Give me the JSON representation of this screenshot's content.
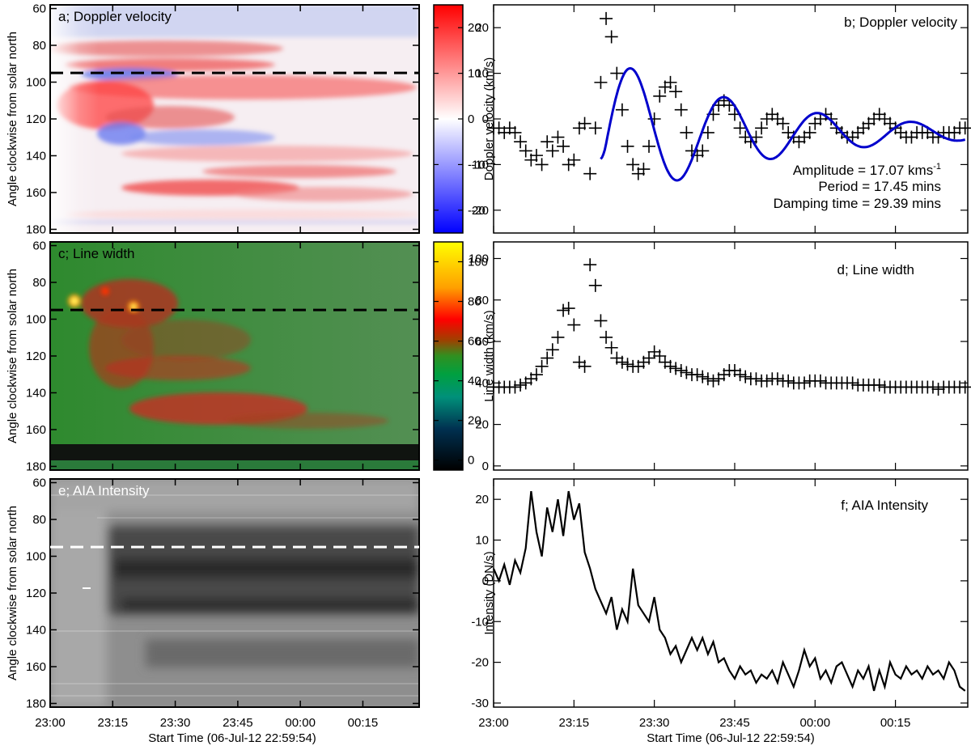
{
  "shared": {
    "left_ylabel": "Angle clockwise from solar north",
    "xlabel": "Start Time (06-Jul-12 22:59:54)",
    "time_ticks": [
      "23:00",
      "23:15",
      "23:30",
      "23:45",
      "00:00",
      "00:15"
    ],
    "time_tick_minutes": [
      0,
      15,
      30,
      45,
      60,
      75
    ],
    "time_range_minutes": [
      0,
      88.5
    ],
    "angle_ticks": [
      "60",
      "80",
      "100",
      "120",
      "140",
      "160",
      "180"
    ],
    "angle_tick_values": [
      60,
      80,
      100,
      120,
      140,
      160,
      180
    ],
    "angle_range": [
      58,
      182
    ],
    "cut_angle": 95
  },
  "chart_data": [
    {
      "id": "a",
      "type": "heatmap",
      "title": "a; Doppler velocity",
      "xlabel": "Start Time (06-Jul-12 22:59:54)",
      "ylabel": "Angle clockwise from solar north",
      "colorbar_label": "Doppler velocity (km/s)",
      "colorbar_ticks": [
        "20",
        "10",
        "0",
        "-10",
        "-20"
      ],
      "colorbar_tick_values": [
        20,
        10,
        0,
        -10,
        -20
      ],
      "colorbar_range": [
        -25,
        25
      ],
      "colormap": [
        "#0000ff",
        "#ffffff",
        "#ff0000"
      ],
      "cut_line": "dashed black at 95"
    },
    {
      "id": "b",
      "type": "scatter",
      "title": "b; Doppler velocity",
      "xlabel": "Start Time (06-Jul-12 22:59:54)",
      "ylabel": "Doppler velocity (km/s)",
      "ylim": [
        -25,
        25
      ],
      "yticks": [
        "20",
        "10",
        "0",
        "-10",
        "-20"
      ],
      "ytick_values": [
        20,
        10,
        0,
        -10,
        -20
      ],
      "series": [
        {
          "name": "observed",
          "marker": "plus",
          "color": "#000000",
          "x": [
            0,
            1,
            2,
            3,
            4,
            5,
            6,
            7,
            8,
            9,
            10,
            11,
            12,
            13,
            14,
            15,
            16,
            17,
            18,
            19,
            20,
            21,
            22,
            23,
            24,
            25,
            26,
            27,
            28,
            29,
            30,
            31,
            32,
            33,
            34,
            35,
            36,
            37,
            38,
            39,
            40,
            41,
            42,
            43,
            44,
            45,
            46,
            47,
            48,
            49,
            50,
            51,
            52,
            53,
            54,
            55,
            56,
            57,
            58,
            59,
            60,
            61,
            62,
            63,
            64,
            65,
            66,
            67,
            68,
            69,
            70,
            71,
            72,
            73,
            74,
            75,
            76,
            77,
            78,
            79,
            80,
            81,
            82,
            83,
            84,
            85,
            86,
            87,
            88
          ],
          "values": [
            -2,
            -2,
            -3,
            -2,
            -3,
            -5,
            -7,
            -9,
            -8,
            -10,
            -5,
            -7,
            -4,
            -6,
            -10,
            -9,
            -2,
            -1,
            -12,
            -2,
            8,
            22,
            18,
            10,
            2,
            -6,
            -10,
            -12,
            -11,
            -6,
            0,
            5,
            7,
            8,
            6,
            2,
            -3,
            -7,
            -8,
            -7,
            -3,
            1,
            3,
            4,
            3,
            1,
            -2,
            -4,
            -5,
            -4,
            -2,
            0,
            1,
            0,
            -1,
            -3,
            -4,
            -5,
            -4,
            -3,
            -1,
            0,
            1,
            0,
            -2,
            -3,
            -4,
            -4,
            -3,
            -2,
            -1,
            0,
            1,
            0,
            -1,
            -2,
            -3,
            -4,
            -4,
            -3,
            -3,
            -3,
            -4,
            -4,
            -3,
            -3,
            -3,
            -2,
            -2
          ]
        },
        {
          "name": "damped sine fit",
          "type": "line",
          "color": "#0000cc",
          "x_start": 20,
          "x_end": 88,
          "amplitude": 17.07,
          "period": 17.45,
          "damping_time": 29.39
        }
      ],
      "annotations": [
        "Amplitude = 17.07 kms",
        "Period = 17.45 mins",
        "Damping time = 29.39 mins"
      ],
      "annotation_superscript": "-1"
    },
    {
      "id": "c",
      "type": "heatmap",
      "title": "c; Line width",
      "xlabel": "Start Time (06-Jul-12 22:59:54)",
      "ylabel": "Angle clockwise from solar north",
      "colorbar_label": "Line width (km/s)",
      "colorbar_ticks": [
        "100",
        "80",
        "60",
        "40",
        "20",
        "0"
      ],
      "colorbar_tick_values": [
        100,
        80,
        60,
        40,
        20,
        0
      ],
      "colorbar_range": [
        -5,
        110
      ],
      "colormap": [
        "#000000",
        "#003050",
        "#00a080",
        "#00a040",
        "#208020",
        "#a04000",
        "#ff0000",
        "#ffa000",
        "#ffff00"
      ],
      "cut_line": "dashed black at 95"
    },
    {
      "id": "d",
      "type": "scatter",
      "title": "d; Line width",
      "xlabel": "Start Time (06-Jul-12 22:59:54)",
      "ylabel": "Line width (km/s)",
      "ylim": [
        -2,
        108
      ],
      "yticks": [
        "100",
        "80",
        "60",
        "40",
        "20",
        "0"
      ],
      "ytick_values": [
        100,
        80,
        60,
        40,
        20,
        0
      ],
      "series": [
        {
          "name": "observed",
          "marker": "plus",
          "color": "#000000",
          "x": [
            0,
            1,
            2,
            3,
            4,
            5,
            6,
            7,
            8,
            9,
            10,
            11,
            12,
            13,
            14,
            15,
            16,
            17,
            18,
            19,
            20,
            21,
            22,
            23,
            24,
            25,
            26,
            27,
            28,
            29,
            30,
            31,
            32,
            33,
            34,
            35,
            36,
            37,
            38,
            39,
            40,
            41,
            42,
            43,
            44,
            45,
            46,
            47,
            48,
            49,
            50,
            51,
            52,
            53,
            54,
            55,
            56,
            57,
            58,
            59,
            60,
            61,
            62,
            63,
            64,
            65,
            66,
            67,
            68,
            69,
            70,
            71,
            72,
            73,
            74,
            75,
            76,
            77,
            78,
            79,
            80,
            81,
            82,
            83,
            84,
            85,
            86,
            87,
            88
          ],
          "values": [
            38,
            38,
            38,
            38,
            38,
            39,
            40,
            42,
            44,
            48,
            52,
            56,
            62,
            75,
            76,
            68,
            50,
            48,
            97,
            87,
            70,
            62,
            57,
            52,
            50,
            49,
            48,
            48,
            50,
            52,
            55,
            53,
            50,
            48,
            47,
            46,
            45,
            44,
            44,
            43,
            42,
            41,
            42,
            44,
            46,
            46,
            44,
            43,
            42,
            42,
            41,
            41,
            42,
            42,
            41,
            41,
            40,
            40,
            40,
            41,
            41,
            41,
            40,
            40,
            40,
            40,
            40,
            40,
            39,
            39,
            39,
            39,
            39,
            38,
            38,
            38,
            38,
            38,
            38,
            38,
            38,
            38,
            38,
            37,
            38,
            38,
            38,
            38,
            38
          ]
        }
      ]
    },
    {
      "id": "e",
      "type": "heatmap",
      "title": "e; AIA Intensity",
      "xlabel": "Start Time (06-Jul-12 22:59:54)",
      "ylabel": "Angle clockwise from solar north",
      "colormap": [
        "#000000",
        "#ffffff"
      ],
      "cut_line": "dashed white at 95"
    },
    {
      "id": "f",
      "type": "line",
      "title": "f; AIA Intensity",
      "xlabel": "Start Time (06-Jul-12 22:59:54)",
      "ylabel": "Intensity (DN/s)",
      "ylim": [
        -31,
        25
      ],
      "yticks": [
        "20",
        "10",
        "0",
        "-10",
        "-20",
        "-30"
      ],
      "ytick_values": [
        20,
        10,
        0,
        -10,
        -20,
        -30
      ],
      "series": [
        {
          "name": "intensity",
          "color": "#000000",
          "x": [
            0,
            1,
            2,
            3,
            4,
            5,
            6,
            7,
            8,
            9,
            10,
            11,
            12,
            13,
            14,
            15,
            16,
            17,
            18,
            19,
            20,
            21,
            22,
            23,
            24,
            25,
            26,
            27,
            28,
            29,
            30,
            31,
            32,
            33,
            34,
            35,
            36,
            37,
            38,
            39,
            40,
            41,
            42,
            43,
            44,
            45,
            46,
            47,
            48,
            49,
            50,
            51,
            52,
            53,
            54,
            55,
            56,
            57,
            58,
            59,
            60,
            61,
            62,
            63,
            64,
            65,
            66,
            67,
            68,
            69,
            70,
            71,
            72,
            73,
            74,
            75,
            76,
            77,
            78,
            79,
            80,
            81,
            82,
            83,
            84,
            85,
            86,
            87,
            88
          ],
          "values": [
            3,
            0,
            4,
            -1,
            5,
            2,
            8,
            22,
            12,
            6,
            18,
            12,
            20,
            11,
            22,
            15,
            19,
            7,
            3,
            -2,
            -5,
            -8,
            -4,
            -12,
            -7,
            -10,
            3,
            -6,
            -8,
            -10,
            -4,
            -12,
            -14,
            -18,
            -16,
            -20,
            -17,
            -14,
            -17,
            -14,
            -18,
            -15,
            -20,
            -19,
            -22,
            -24,
            -21,
            -23,
            -22,
            -25,
            -23,
            -24,
            -22,
            -25,
            -20,
            -23,
            -26,
            -22,
            -17,
            -21,
            -19,
            -24,
            -22,
            -25,
            -21,
            -20,
            -23,
            -26,
            -22,
            -24,
            -21,
            -27,
            -22,
            -26,
            -20,
            -23,
            -24,
            -21,
            -23,
            -22,
            -24,
            -21,
            -23,
            -22,
            -24,
            -20,
            -22,
            -26,
            -27
          ]
        }
      ]
    }
  ]
}
